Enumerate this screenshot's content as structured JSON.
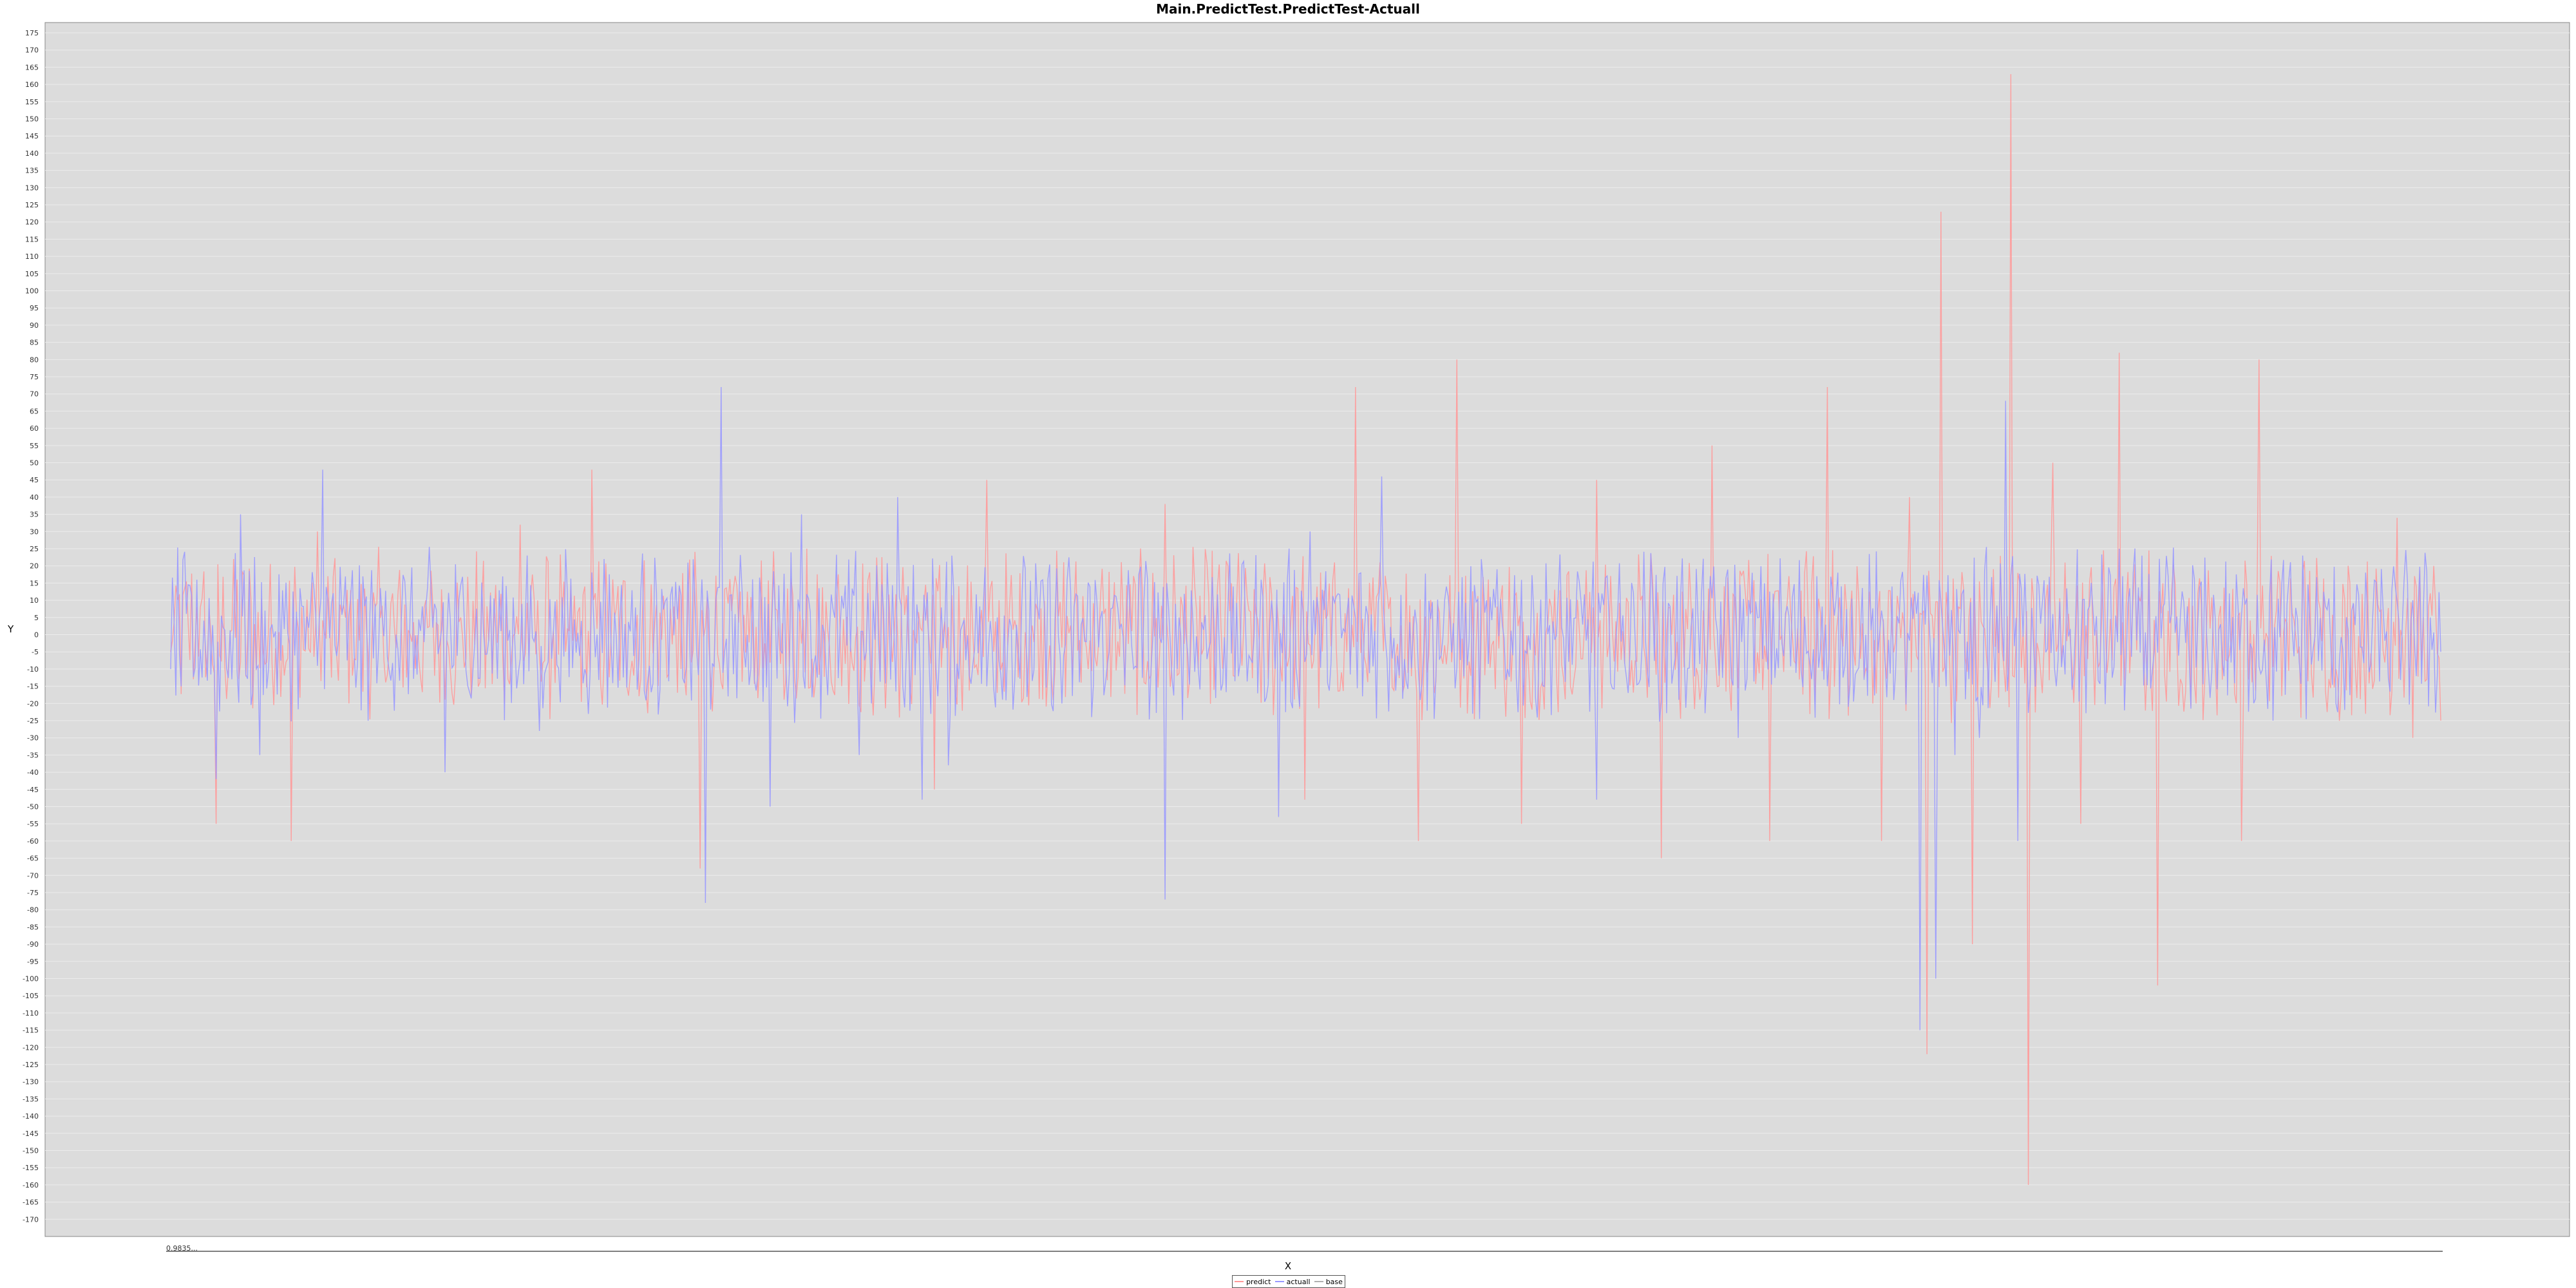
{
  "chart_data": {
    "type": "line",
    "title": "Main.PredictTest.PredictTest-Actuall",
    "xlabel": "X",
    "ylabel": "Y",
    "ylim": [
      -175,
      178
    ],
    "yticks": [
      175,
      170,
      165,
      160,
      155,
      150,
      145,
      140,
      135,
      130,
      125,
      120,
      115,
      110,
      105,
      100,
      95,
      90,
      85,
      80,
      75,
      70,
      65,
      60,
      55,
      50,
      45,
      40,
      35,
      30,
      25,
      20,
      15,
      10,
      5,
      0,
      -5,
      -10,
      -15,
      -20,
      -25,
      -30,
      -35,
      -40,
      -45,
      -50,
      -55,
      -60,
      -65,
      -70,
      -75,
      -80,
      -85,
      -90,
      -95,
      -100,
      -105,
      -110,
      -115,
      -120,
      -125,
      -130,
      -135,
      -140,
      -145,
      -150,
      -155,
      -160,
      -165,
      -170
    ],
    "x_count": 1300,
    "legend_position": "bottom",
    "series": [
      {
        "name": "predict",
        "color": "#ff9999",
        "keypoints": [
          [
            0,
            -5
          ],
          [
            20,
            8
          ],
          [
            35,
            -55
          ],
          [
            50,
            22
          ],
          [
            95,
            -60
          ],
          [
            115,
            30
          ],
          [
            200,
            10
          ],
          [
            275,
            32
          ],
          [
            310,
            -5
          ],
          [
            330,
            48
          ],
          [
            400,
            -10
          ],
          [
            415,
            -68
          ],
          [
            500,
            25
          ],
          [
            580,
            -15
          ],
          [
            600,
            -45
          ],
          [
            640,
            45
          ],
          [
            720,
            -10
          ],
          [
            780,
            38
          ],
          [
            830,
            20
          ],
          [
            890,
            -48
          ],
          [
            930,
            72
          ],
          [
            980,
            -60
          ],
          [
            1010,
            80
          ],
          [
            1060,
            -55
          ],
          [
            1120,
            45
          ],
          [
            1170,
            -65
          ],
          [
            1210,
            55
          ],
          [
            1255,
            -60
          ],
          [
            1300,
            72
          ],
          [
            1343,
            -60
          ],
          [
            1365,
            40
          ],
          [
            1378,
            -122
          ],
          [
            1390,
            123
          ],
          [
            1415,
            -90
          ],
          [
            1445,
            163
          ],
          [
            1458,
            -160
          ],
          [
            1478,
            50
          ],
          [
            1500,
            -55
          ],
          [
            1530,
            82
          ],
          [
            1560,
            -102
          ],
          [
            1590,
            -20
          ],
          [
            1625,
            -60
          ],
          [
            1640,
            80
          ],
          [
            1700,
            -10
          ],
          [
            1748,
            34
          ],
          [
            1760,
            -30
          ],
          [
            1782,
            -25
          ]
        ]
      },
      {
        "name": "actuall",
        "color": "#9999ff",
        "keypoints": [
          [
            0,
            -10
          ],
          [
            20,
            16
          ],
          [
            35,
            -42
          ],
          [
            55,
            35
          ],
          [
            70,
            -35
          ],
          [
            120,
            48
          ],
          [
            150,
            -22
          ],
          [
            215,
            -40
          ],
          [
            290,
            -28
          ],
          [
            340,
            22
          ],
          [
            420,
            -78
          ],
          [
            432,
            72
          ],
          [
            455,
            -10
          ],
          [
            470,
            -50
          ],
          [
            495,
            35
          ],
          [
            540,
            -35
          ],
          [
            570,
            40
          ],
          [
            590,
            -48
          ],
          [
            610,
            -38
          ],
          [
            640,
            -15
          ],
          [
            700,
            -20
          ],
          [
            770,
            -10
          ],
          [
            780,
            -77
          ],
          [
            790,
            -10
          ],
          [
            870,
            -53
          ],
          [
            895,
            30
          ],
          [
            950,
            46
          ],
          [
            1000,
            10
          ],
          [
            1050,
            -10
          ],
          [
            1120,
            -48
          ],
          [
            1180,
            -10
          ],
          [
            1230,
            -30
          ],
          [
            1300,
            -15
          ],
          [
            1340,
            -5
          ],
          [
            1373,
            -115
          ],
          [
            1385,
            -100
          ],
          [
            1400,
            -35
          ],
          [
            1420,
            -30
          ],
          [
            1440,
            68
          ],
          [
            1450,
            -60
          ],
          [
            1480,
            -15
          ],
          [
            1530,
            25
          ],
          [
            1600,
            -10
          ],
          [
            1650,
            -25
          ],
          [
            1700,
            -20
          ],
          [
            1760,
            10
          ],
          [
            1782,
            -5
          ]
        ]
      },
      {
        "name": "base",
        "color": "#b0b0b0",
        "keypoints": []
      }
    ]
  },
  "x_axis_text": "0.9835...",
  "legend": {
    "predict_label": "predict",
    "actuall_label": "actuall",
    "base_label": "base"
  }
}
